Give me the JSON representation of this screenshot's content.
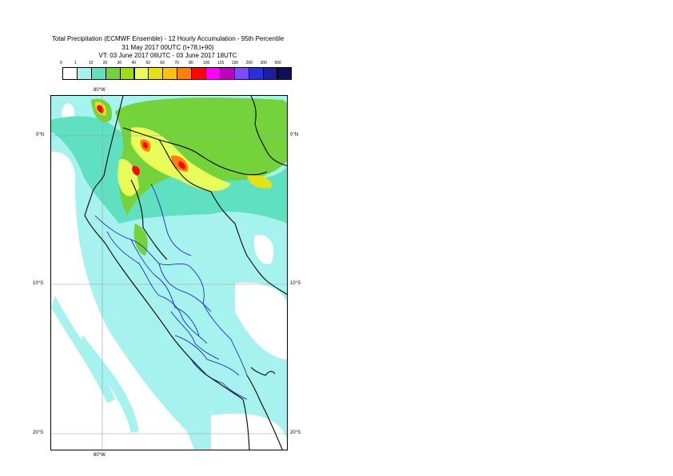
{
  "header": {
    "title": "Total Precipitation (ECMWF Ensemble) - 12 Hourly Accumulation - 95th Percentile",
    "base_time": "31 May 2017 00UTC (t+78,t+90)",
    "valid_time": "VT: 03 June 2017 06UTC - 03 June 2017 18UTC"
  },
  "legend": {
    "ticks": [
      "0",
      "1",
      "10",
      "20",
      "30",
      "40",
      "50",
      "60",
      "70",
      "80",
      "100",
      "125",
      "150",
      "200",
      "300",
      "500"
    ],
    "colors": [
      "#ffffff",
      "#a6f2ee",
      "#5fe0c1",
      "#74d23a",
      "#9fdc10",
      "#e8fd5a",
      "#e4e212",
      "#ffc20c",
      "#ff7f07",
      "#fe0406",
      "#ff00ff",
      "#c000c0",
      "#7b4bfc",
      "#2b2ee0",
      "#1e1ea0",
      "#101058"
    ]
  },
  "map": {
    "lat_labels": {
      "top_left": "0°N",
      "top_right": "0°N",
      "mid_left": "10°S",
      "mid_right": "10°S",
      "bottom_left": "20°S",
      "bottom_right": "20°S"
    },
    "lon_labels": {
      "top": "80°W",
      "bottom": "80°W"
    },
    "colors": {
      "coast": "#000000",
      "provinces": "#1111cc",
      "grid": "#9a9a9a",
      "light": "#a6f2ee",
      "medium": "#5fe0c1",
      "green": "#74d23a",
      "lime": "#9fdc10",
      "yellow": "#e8fd5a",
      "orange": "#ff7f07",
      "red": "#fe0406"
    }
  }
}
